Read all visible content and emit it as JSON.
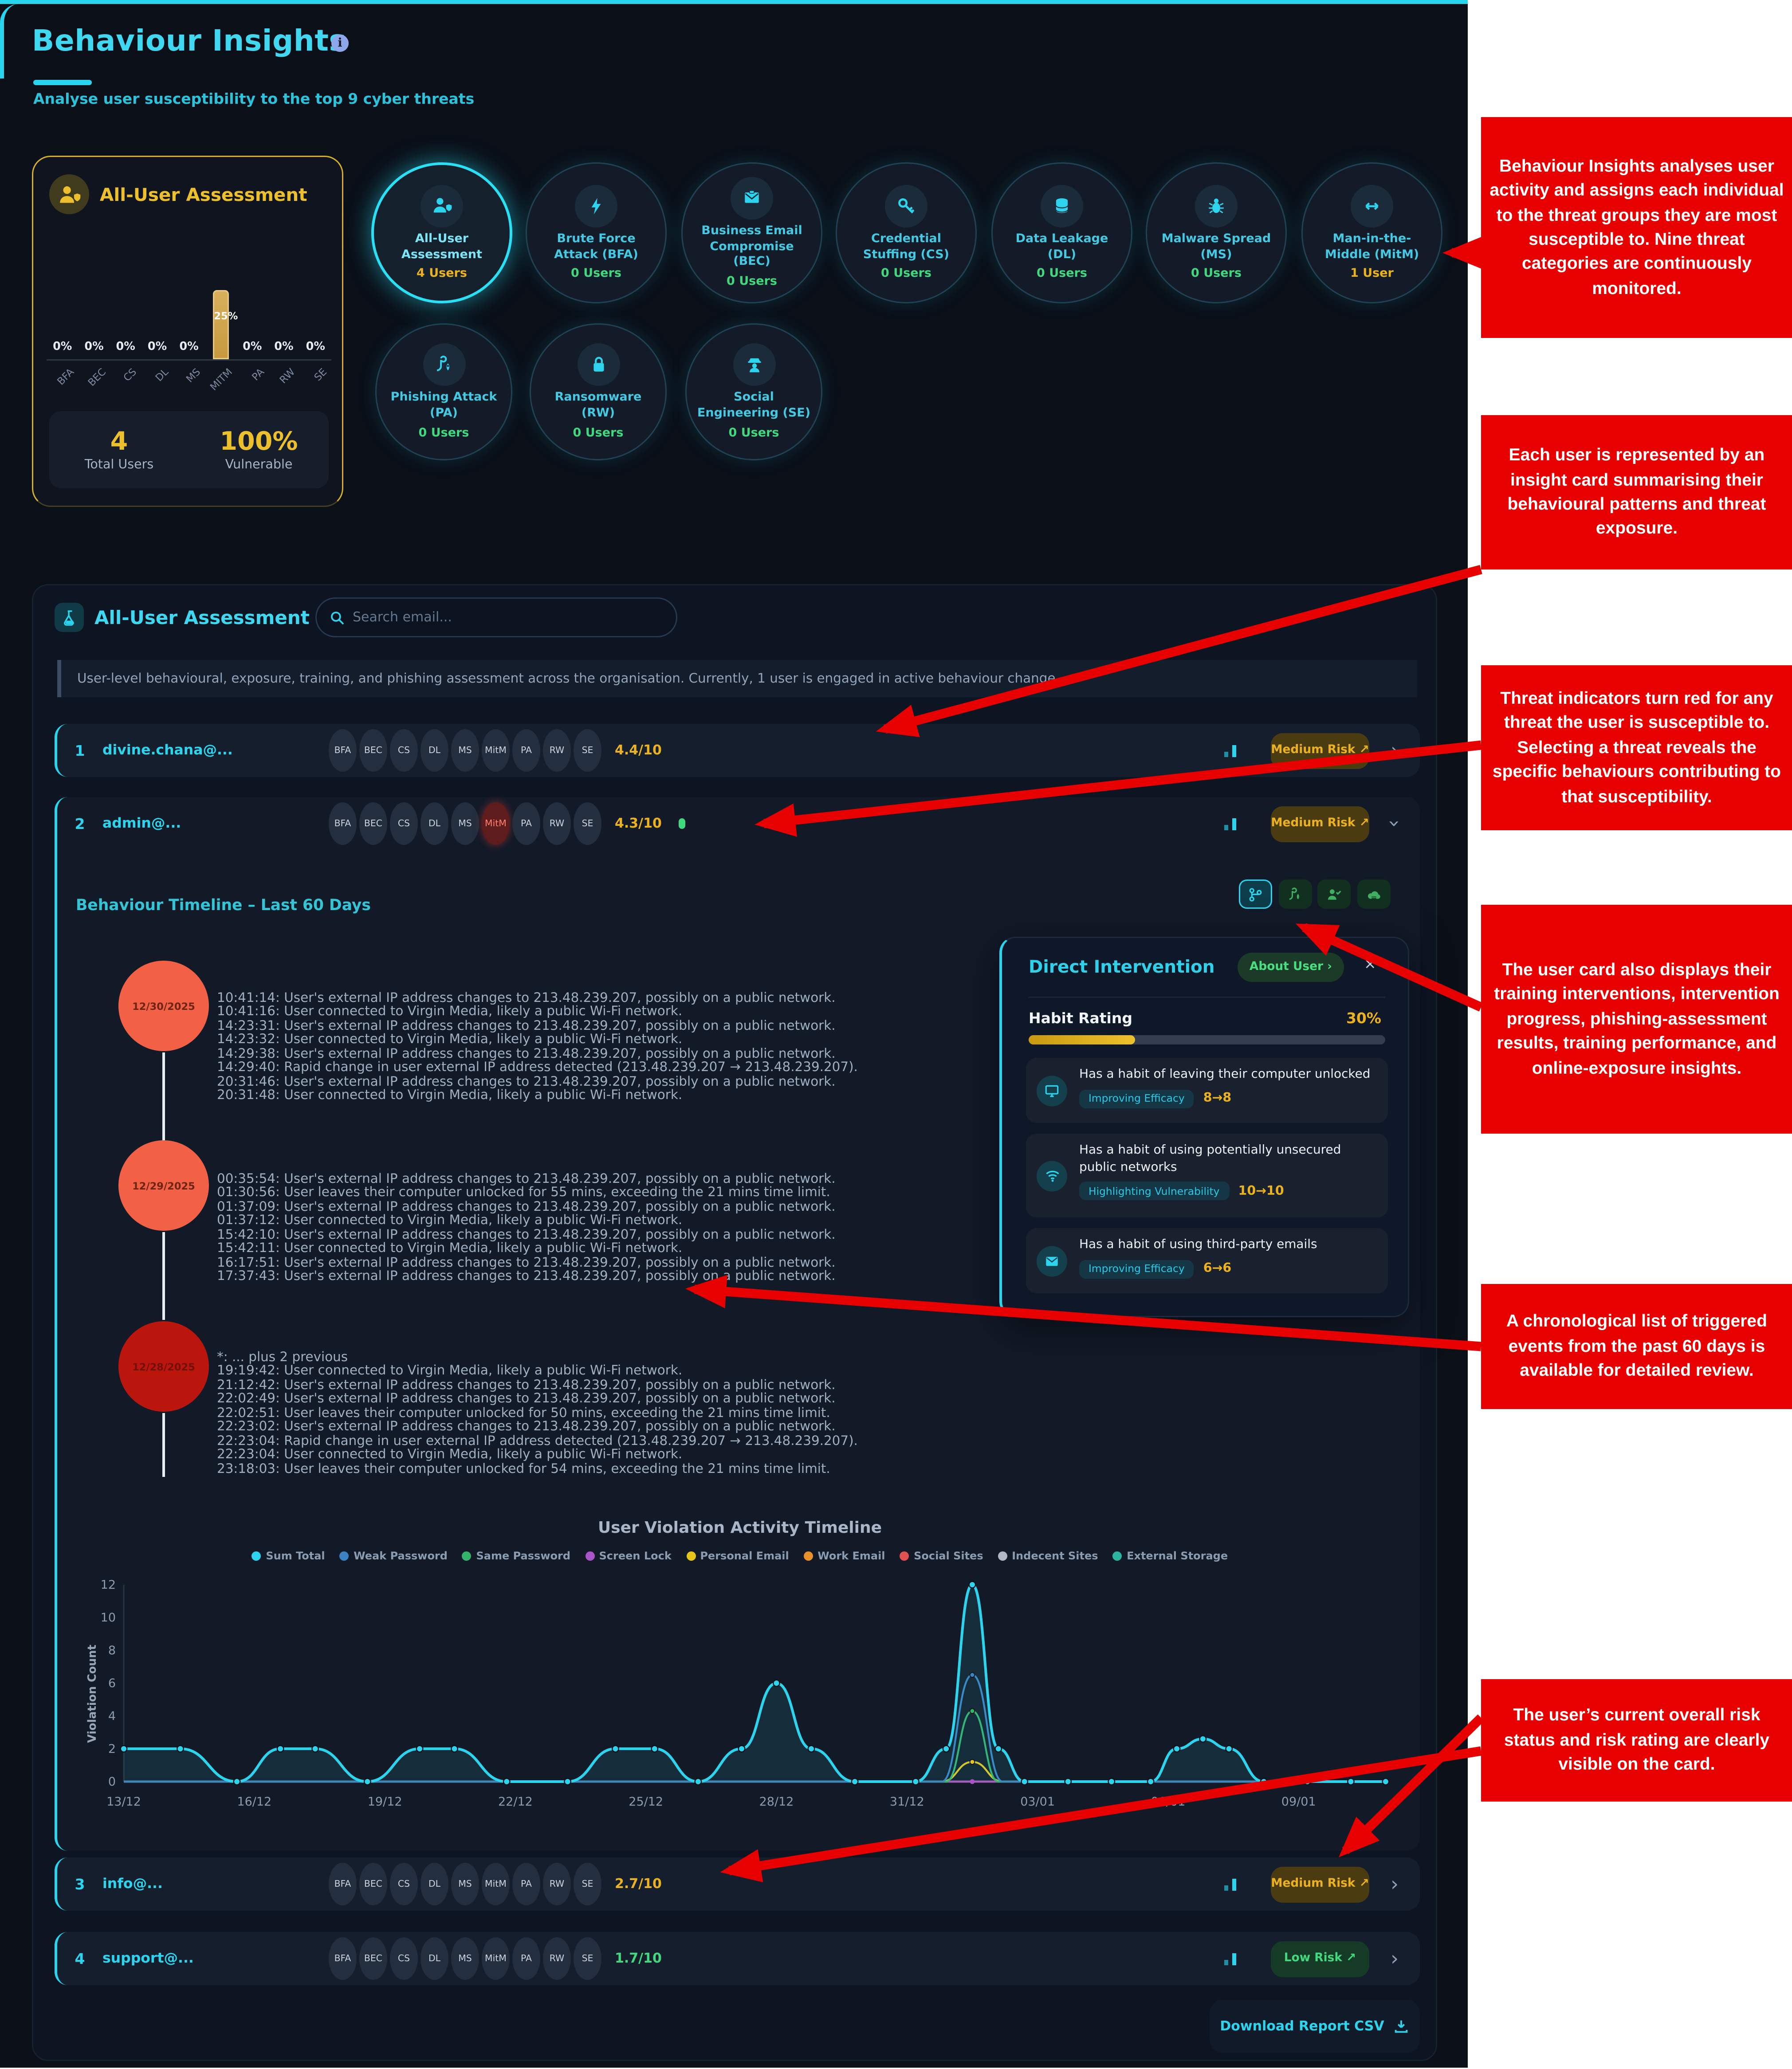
{
  "header": {
    "title": "Behaviour Insights",
    "info_icon": "i",
    "subtitle": "Analyse user susceptibility to the top 9 cyber threats"
  },
  "summary_card": {
    "title": "All-User Assessment",
    "total_users_value": "4",
    "total_users_label": "Total Users",
    "vulnerable_value": "100%",
    "vulnerable_label": "Vulnerable",
    "chart": {
      "type": "bar",
      "categories": [
        "BFA",
        "BEC",
        "CS",
        "DL",
        "MS",
        "MITM",
        "PA",
        "RW",
        "SE"
      ],
      "values": [
        0,
        0,
        0,
        0,
        0,
        25,
        0,
        0,
        0
      ],
      "value_labels": [
        "0%",
        "0%",
        "0%",
        "0%",
        "0%",
        "25%",
        "0%",
        "0%",
        "0%"
      ],
      "ylim": [
        0,
        25
      ]
    }
  },
  "threat_groups": [
    {
      "label": "All-User Assessment",
      "users": "4 Users",
      "selected": true
    },
    {
      "label": "Brute Force Attack (BFA)",
      "users": "0 Users"
    },
    {
      "label": "Business Email Compromise (BEC)",
      "users": "0 Users"
    },
    {
      "label": "Credential Stuffing (CS)",
      "users": "0 Users"
    },
    {
      "label": "Data Leakage (DL)",
      "users": "0 Users"
    },
    {
      "label": "Malware Spread (MS)",
      "users": "0 Users"
    },
    {
      "label": "Man-in-the-Middle (MitM)",
      "users": "1 User"
    },
    {
      "label": "Phishing Attack (PA)",
      "users": "0 Users"
    },
    {
      "label": "Ransomware (RW)",
      "users": "0 Users"
    },
    {
      "label": "Social Engineering (SE)",
      "users": "0 Users"
    }
  ],
  "assessment_section": {
    "title": "All-User Assessment",
    "search_placeholder": "Search email...",
    "description": "User-level behavioural, exposure, training, and phishing assessment across the organisation. Currently, 1 user is engaged in active behaviour change."
  },
  "badge_labels": [
    "BFA",
    "BEC",
    "CS",
    "DL",
    "MS",
    "MitM",
    "PA",
    "RW",
    "SE"
  ],
  "users": [
    {
      "rank": "1",
      "email": "divine.chana@...",
      "score": "4.4/10",
      "risk": "Medium Risk ↗",
      "risk_level": "medium"
    },
    {
      "rank": "2",
      "email": "admin@...",
      "score": "4.3/10",
      "risk": "Medium Risk ↗",
      "risk_level": "medium",
      "active_threat": "MitM"
    },
    {
      "rank": "3",
      "email": "info@...",
      "score": "2.7/10",
      "risk": "Medium Risk ↗",
      "risk_level": "medium"
    },
    {
      "rank": "4",
      "email": "support@...",
      "score": "1.7/10",
      "risk": "Low Risk ↗",
      "risk_level": "low"
    }
  ],
  "expanded": {
    "timeline_title": "Behaviour Timeline – Last 60 Days",
    "timeline": [
      {
        "date": "12/30/2025",
        "events": [
          "10:41:14: User's external IP address changes to 213.48.239.207, possibly on a public network.",
          "10:41:16: User connected to Virgin Media, likely a public Wi-Fi network.",
          "14:23:31: User's external IP address changes to 213.48.239.207, possibly on a public network.",
          "14:23:32: User connected to Virgin Media, likely a public Wi-Fi network.",
          "14:29:38: User's external IP address changes to 213.48.239.207, possibly on a public network.",
          "14:29:40: Rapid change in user external IP address detected (213.48.239.207 → 213.48.239.207).",
          "20:31:46: User's external IP address changes to 213.48.239.207, possibly on a public network.",
          "20:31:48: User connected to Virgin Media, likely a public Wi-Fi network."
        ]
      },
      {
        "date": "12/29/2025",
        "events": [
          "00:35:54: User's external IP address changes to 213.48.239.207, possibly on a public network.",
          "01:30:56: User leaves their computer unlocked for 55 mins, exceeding the 21 mins time limit.",
          "01:37:09: User's external IP address changes to 213.48.239.207, possibly on a public network.",
          "01:37:12: User connected to Virgin Media, likely a public Wi-Fi network.",
          "15:42:10: User's external IP address changes to 213.48.239.207, possibly on a public network.",
          "15:42:11: User connected to Virgin Media, likely a public Wi-Fi network.",
          "16:17:51: User's external IP address changes to 213.48.239.207, possibly on a public network.",
          "17:37:43: User's external IP address changes to 213.48.239.207, possibly on a public network."
        ]
      },
      {
        "date": "12/28/2025",
        "events": [
          "*: ... plus 2 previous",
          "19:19:42: User connected to Virgin Media, likely a public Wi-Fi network.",
          "21:12:42: User's external IP address changes to 213.48.239.207, possibly on a public network.",
          "22:02:49: User's external IP address changes to 213.48.239.207, possibly on a public network.",
          "22:02:51: User leaves their computer unlocked for 50 mins, exceeding the 21 mins time limit.",
          "22:23:02: User's external IP address changes to 213.48.239.207, possibly on a public network.",
          "22:23:04: Rapid change in user external IP address detected (213.48.239.207 → 213.48.239.207).",
          "22:23:04: User connected to Virgin Media, likely a public Wi-Fi network.",
          "23:18:03: User leaves their computer unlocked for 54 mins, exceeding the 21 mins time limit."
        ]
      }
    ],
    "intervention": {
      "title": "Direct Intervention",
      "about_button": "About User ›",
      "close": "×",
      "habit_rating_label": "Habit Rating",
      "habit_rating_value": "30%",
      "habit_rating_percent": 30,
      "habits": [
        {
          "text": "Has a habit of leaving their computer unlocked",
          "tag": "Improving Efficacy",
          "change": "8→8"
        },
        {
          "text": "Has a habit of using potentially unsecured public networks",
          "tag": "Highlighting Vulnerability",
          "change": "10→10"
        },
        {
          "text": "Has a habit of using third-party emails",
          "tag": "Improving Efficacy",
          "change": "6→6"
        }
      ]
    }
  },
  "chart_data": {
    "type": "area",
    "title": "User Violation Activity Timeline",
    "ylabel": "Violation Count",
    "ylim": [
      0,
      12
    ],
    "y_ticks": [
      0,
      2,
      4,
      6,
      8,
      10,
      12
    ],
    "x_ticks": [
      "13/12",
      "16/12",
      "19/12",
      "22/12",
      "25/12",
      "28/12",
      "31/12",
      "03/01",
      "06/01",
      "09/01"
    ],
    "x_tick_days": [
      0,
      3,
      6,
      9,
      12,
      15,
      18,
      21,
      24,
      27
    ],
    "x_range_days": [
      0,
      29
    ],
    "grid": false,
    "legend_position": "top",
    "series": [
      {
        "name": "Sum Total",
        "color": "#2dd4ee",
        "fill": true,
        "points": [
          [
            0,
            2
          ],
          [
            1.3,
            2
          ],
          [
            2.6,
            0
          ],
          [
            3.6,
            2
          ],
          [
            4.4,
            2
          ],
          [
            5.6,
            0
          ],
          [
            6.8,
            2
          ],
          [
            7.6,
            2
          ],
          [
            8.8,
            0
          ],
          [
            10.2,
            0
          ],
          [
            11.3,
            2
          ],
          [
            12.2,
            2
          ],
          [
            13.2,
            0
          ],
          [
            14.2,
            2
          ],
          [
            15,
            6
          ],
          [
            15.8,
            2
          ],
          [
            16.8,
            0
          ],
          [
            18.2,
            0
          ],
          [
            18.9,
            2
          ],
          [
            19.5,
            12
          ],
          [
            20.1,
            2
          ],
          [
            20.7,
            0
          ],
          [
            21.7,
            0
          ],
          [
            22.7,
            0
          ],
          [
            23.6,
            0
          ],
          [
            24.2,
            2
          ],
          [
            24.8,
            2.6
          ],
          [
            25.4,
            2
          ],
          [
            26.2,
            0
          ],
          [
            27.2,
            0
          ],
          [
            28.2,
            0
          ],
          [
            29,
            0
          ]
        ]
      },
      {
        "name": "Weak Password",
        "color": "#3b82c4",
        "points": [
          [
            0,
            0
          ],
          [
            18.8,
            0
          ],
          [
            19.5,
            6.5
          ],
          [
            20.2,
            0
          ],
          [
            29,
            0
          ]
        ]
      },
      {
        "name": "Same Password",
        "color": "#34b36b",
        "points": [
          [
            0,
            0
          ],
          [
            18.9,
            0
          ],
          [
            19.5,
            4.3
          ],
          [
            20.1,
            0
          ],
          [
            29,
            0
          ]
        ]
      },
      {
        "name": "Screen Lock",
        "color": "#a855c7",
        "points": [
          [
            0,
            0
          ],
          [
            19.5,
            0
          ],
          [
            29,
            0
          ]
        ]
      },
      {
        "name": "Personal Email",
        "color": "#e7c419",
        "points": [
          [
            0,
            0
          ],
          [
            18.8,
            0
          ],
          [
            19.5,
            1.2
          ],
          [
            20.2,
            0
          ],
          [
            29,
            0
          ]
        ]
      },
      {
        "name": "Work Email",
        "color": "#e8902a",
        "points": [
          [
            0,
            0
          ],
          [
            29,
            0
          ]
        ]
      },
      {
        "name": "Social Sites",
        "color": "#e05252",
        "points": [
          [
            0,
            0
          ],
          [
            29,
            0
          ]
        ]
      },
      {
        "name": "Indecent Sites",
        "color": "#b0b8c4",
        "points": [
          [
            0,
            0
          ],
          [
            29,
            0
          ]
        ]
      },
      {
        "name": "External Storage",
        "color": "#2bb5a0",
        "points": [
          [
            0,
            0
          ],
          [
            29,
            0
          ]
        ]
      }
    ]
  },
  "download_button": "Download Report CSV",
  "annotations": [
    {
      "text": "Behaviour Insights analyses user activity and assigns each individual to the threat groups they are most susceptible to. Nine threat categories are continuously monitored."
    },
    {
      "text": "Each user is represented by an insight card summarising their behavioural patterns and threat exposure."
    },
    {
      "text": "Threat indicators turn red for any threat the user is susceptible to. Selecting a threat reveals the specific behaviours contributing to that susceptibility."
    },
    {
      "text": "The user card also displays their training interventions, intervention progress, phishing-assessment results, training performance, and online-exposure insights."
    },
    {
      "text": "A chronological list of triggered events from the past 60 days is available for detailed review."
    },
    {
      "text": "The user’s current overall risk status and risk rating are clearly visible on the card."
    }
  ]
}
